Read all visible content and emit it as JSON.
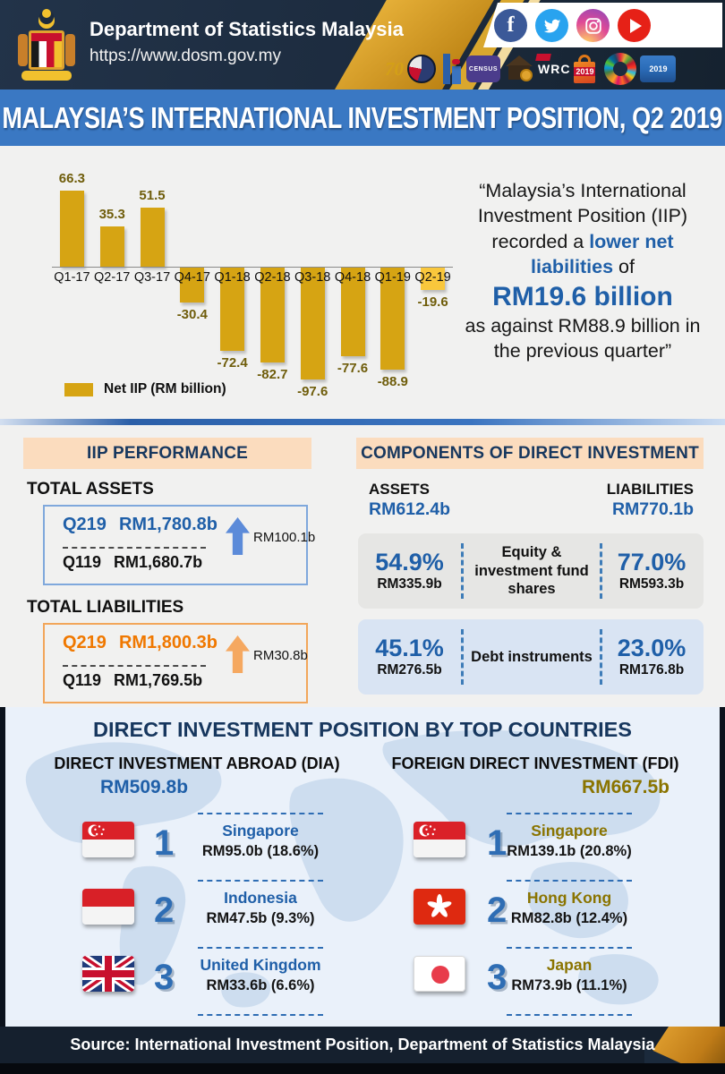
{
  "colors": {
    "header_navy": "#1C2B3E",
    "title_bar_blue": "#3A78C3",
    "accent_blue": "#1F5FA8",
    "accent_orange": "#F07800",
    "peach_header": "#FBDCBE",
    "bar_gold": "#D6A413",
    "bar_gold_highlight": "#F9C73C",
    "gold_label_text": "#6F5D0B",
    "fdi_gold_text": "#8A7400",
    "footer_navy": "#15202E"
  },
  "header": {
    "dept_name": "Department of Statistics Malaysia",
    "url": "https://www.dosm.gov.my",
    "social_icons": [
      "facebook",
      "twitter",
      "instagram",
      "youtube"
    ],
    "logos": {
      "seventy": "70",
      "census": "CENSUS",
      "wrc": "WRC",
      "bag_year": "2019",
      "isi_year": "2019"
    }
  },
  "title_bar": {
    "text": "MALAYSIA’S INTERNATIONAL INVESTMENT POSITION, Q2 2019"
  },
  "chart_data": {
    "type": "bar",
    "categories": [
      "Q1-17",
      "Q2-17",
      "Q3-17",
      "Q4-17",
      "Q1-18",
      "Q2-18",
      "Q3-18",
      "Q4-18",
      "Q1-19",
      "Q2-19"
    ],
    "values": [
      66.3,
      35.3,
      51.5,
      -30.4,
      -72.4,
      -82.7,
      -97.6,
      -77.6,
      -88.9,
      -19.6
    ],
    "legend": "Net IIP (RM billion)",
    "bar_color": "#D6A413",
    "highlight_index": 9,
    "highlight_color": "#F9C73C",
    "ylim": [
      -110,
      80
    ],
    "grid": false,
    "legend_position": "bottom-left",
    "title": "Net IIP (RM billion)",
    "xlabel": "",
    "ylabel": ""
  },
  "quote": {
    "line1": "“Malaysia’s International",
    "line2": "Investment Position (IIP)",
    "line3_plain": "recorded a ",
    "line3_em": "lower net",
    "line4_em": "liabilities",
    "line4_plain": " of",
    "line5": "RM19.6 billion",
    "line6": "as against RM88.9 billion in",
    "line7": "the previous quarter”"
  },
  "iip": {
    "header": "IIP PERFORMANCE",
    "assets": {
      "title": "TOTAL ASSETS",
      "q2_label": "Q219",
      "q2_value": "RM1,780.8b",
      "q1_label": "Q119",
      "q1_value": "RM1,680.7b",
      "change": "RM100.1b"
    },
    "liabilities": {
      "title": "TOTAL LIABILITIES",
      "q2_label": "Q219",
      "q2_value": "RM1,800.3b",
      "q1_label": "Q119",
      "q1_value": "RM1,769.5b",
      "change": "RM30.8b"
    }
  },
  "components": {
    "header": "COMPONENTS OF DIRECT INVESTMENT",
    "assets_label": "ASSETS",
    "assets_total": "RM612.4b",
    "liabilities_label": "LIABILITIES",
    "liabilities_total": "RM770.1b",
    "rows": [
      {
        "name": "Equity & investment fund shares",
        "assets_pct": "54.9%",
        "assets_value": "RM335.9b",
        "liabilities_pct": "77.0%",
        "liabilities_value": "RM593.3b"
      },
      {
        "name": "Debt instruments",
        "assets_pct": "45.1%",
        "assets_value": "RM276.5b",
        "liabilities_pct": "23.0%",
        "liabilities_value": "RM176.8b"
      }
    ]
  },
  "countries": {
    "title": "DIRECT INVESTMENT POSITION BY TOP COUNTRIES",
    "dia": {
      "header": "DIRECT INVESTMENT ABROAD (DIA)",
      "total": "RM509.8b",
      "items": [
        {
          "rank": "1",
          "name": "Singapore",
          "value": "RM95.0b (18.6%)",
          "flag": "singapore"
        },
        {
          "rank": "2",
          "name": "Indonesia",
          "value": "RM47.5b (9.3%)",
          "flag": "indonesia"
        },
        {
          "rank": "3",
          "name": "United Kingdom",
          "value": "RM33.6b (6.6%)",
          "flag": "united-kingdom"
        }
      ]
    },
    "fdi": {
      "header": "FOREIGN DIRECT INVESTMENT (FDI)",
      "total": "RM667.5b",
      "items": [
        {
          "rank": "1",
          "name": "Singapore",
          "value": "RM139.1b (20.8%)",
          "flag": "singapore"
        },
        {
          "rank": "2",
          "name": "Hong Kong",
          "value": "RM82.8b (12.4%)",
          "flag": "hong-kong"
        },
        {
          "rank": "3",
          "name": "Japan",
          "value": "RM73.9b (11.1%)",
          "flag": "japan"
        }
      ]
    }
  },
  "footer": {
    "source": "Source: International Investment Position, Department of Statistics Malaysia"
  }
}
